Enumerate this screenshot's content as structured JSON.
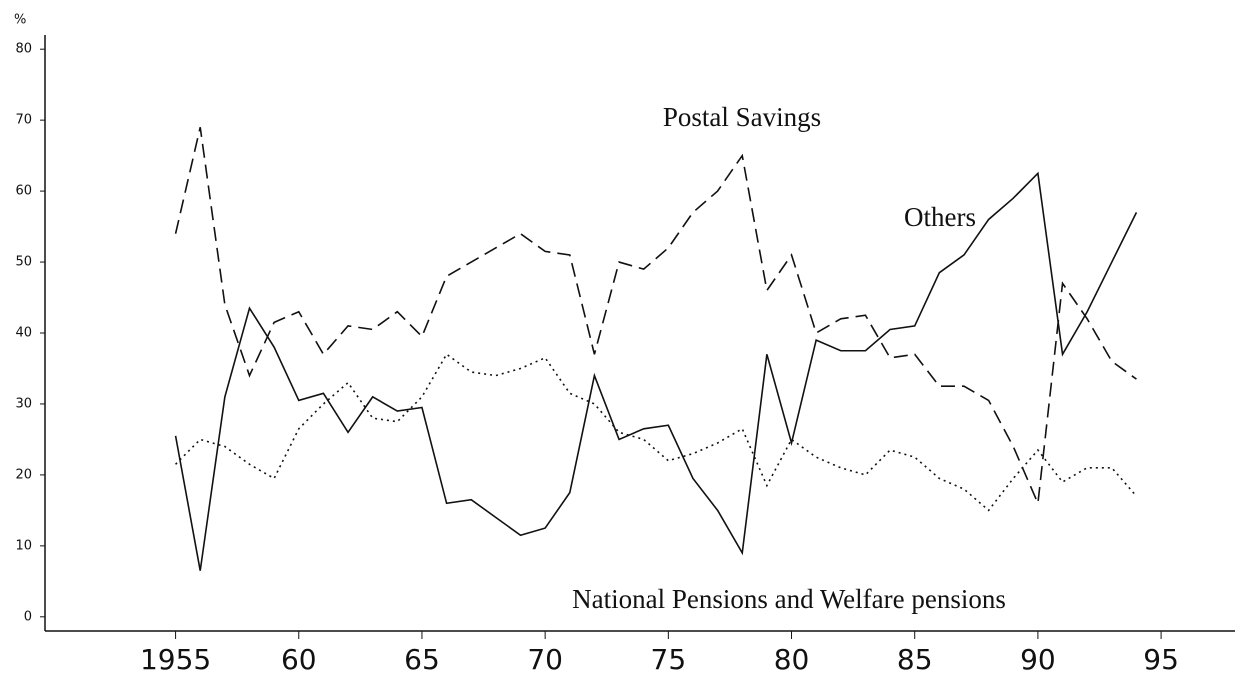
{
  "chart_data": {
    "type": "line",
    "y_unit": "%",
    "annotations": [
      "Postal Savings",
      "Others",
      "National Pensions and Welfare pensions"
    ],
    "x": [
      1955,
      1956,
      1957,
      1958,
      1959,
      1960,
      1961,
      1962,
      1963,
      1964,
      1965,
      1966,
      1967,
      1968,
      1969,
      1970,
      1971,
      1972,
      1973,
      1974,
      1975,
      1976,
      1977,
      1978,
      1979,
      1980,
      1981,
      1982,
      1983,
      1984,
      1985,
      1986,
      1987,
      1988,
      1989,
      1990,
      1991,
      1992,
      1993,
      1994
    ],
    "series": [
      {
        "name": "Postal Savings",
        "color": "#111111",
        "dash": "dashed",
        "values": [
          54,
          69,
          44,
          34,
          41.5,
          43,
          37,
          41,
          40.5,
          43,
          39.5,
          48,
          50,
          52,
          54,
          51.5,
          51,
          37,
          50,
          49,
          52,
          57,
          60,
          65,
          46,
          51,
          40,
          42,
          42.5,
          36.5,
          37,
          32.5,
          32.5,
          30.5,
          24,
          16,
          47,
          42,
          36,
          33.5
        ]
      },
      {
        "name": "Others",
        "color": "#111111",
        "dash": "solid",
        "values": [
          25.5,
          6.5,
          31,
          43.5,
          38,
          30.5,
          31.5,
          26,
          31,
          29,
          29.5,
          16,
          16.5,
          14,
          11.5,
          12.5,
          17.5,
          34,
          25,
          26.5,
          27,
          19.5,
          15,
          9,
          37,
          24.5,
          39,
          37.5,
          37.5,
          40.5,
          41,
          48.5,
          51,
          56,
          59,
          62.5,
          37,
          43,
          50,
          57
        ]
      },
      {
        "name": "National Pensions and Welfare pensions",
        "color": "#111111",
        "dash": "dotted",
        "values": [
          21.5,
          25,
          24,
          21.5,
          19.5,
          26.5,
          30,
          33,
          28,
          27.5,
          31,
          37,
          34.5,
          34,
          35,
          36.5,
          31.5,
          30,
          26,
          25,
          22,
          23,
          24.5,
          26.5,
          18.5,
          25,
          22.5,
          21,
          20,
          23.5,
          22.5,
          19.5,
          18,
          15,
          19.5,
          23.5,
          19,
          21,
          21,
          17
        ]
      }
    ],
    "xlim": [
      1949.7,
      1998
    ],
    "xticks": [
      1955,
      {
        "value": 1960,
        "label": "60"
      },
      {
        "value": 1965,
        "label": "65"
      },
      {
        "value": 1970,
        "label": "70"
      },
      {
        "value": 1975,
        "label": "75"
      },
      {
        "value": 1980,
        "label": "80"
      },
      {
        "value": 1985,
        "label": "85"
      },
      {
        "value": 1990,
        "label": "90"
      },
      {
        "value": 1995,
        "label": "95"
      }
    ],
    "ylim": [
      -2,
      82
    ],
    "yticks": [
      0,
      10,
      20,
      30,
      40,
      50,
      60,
      70,
      80
    ],
    "grid": false
  }
}
